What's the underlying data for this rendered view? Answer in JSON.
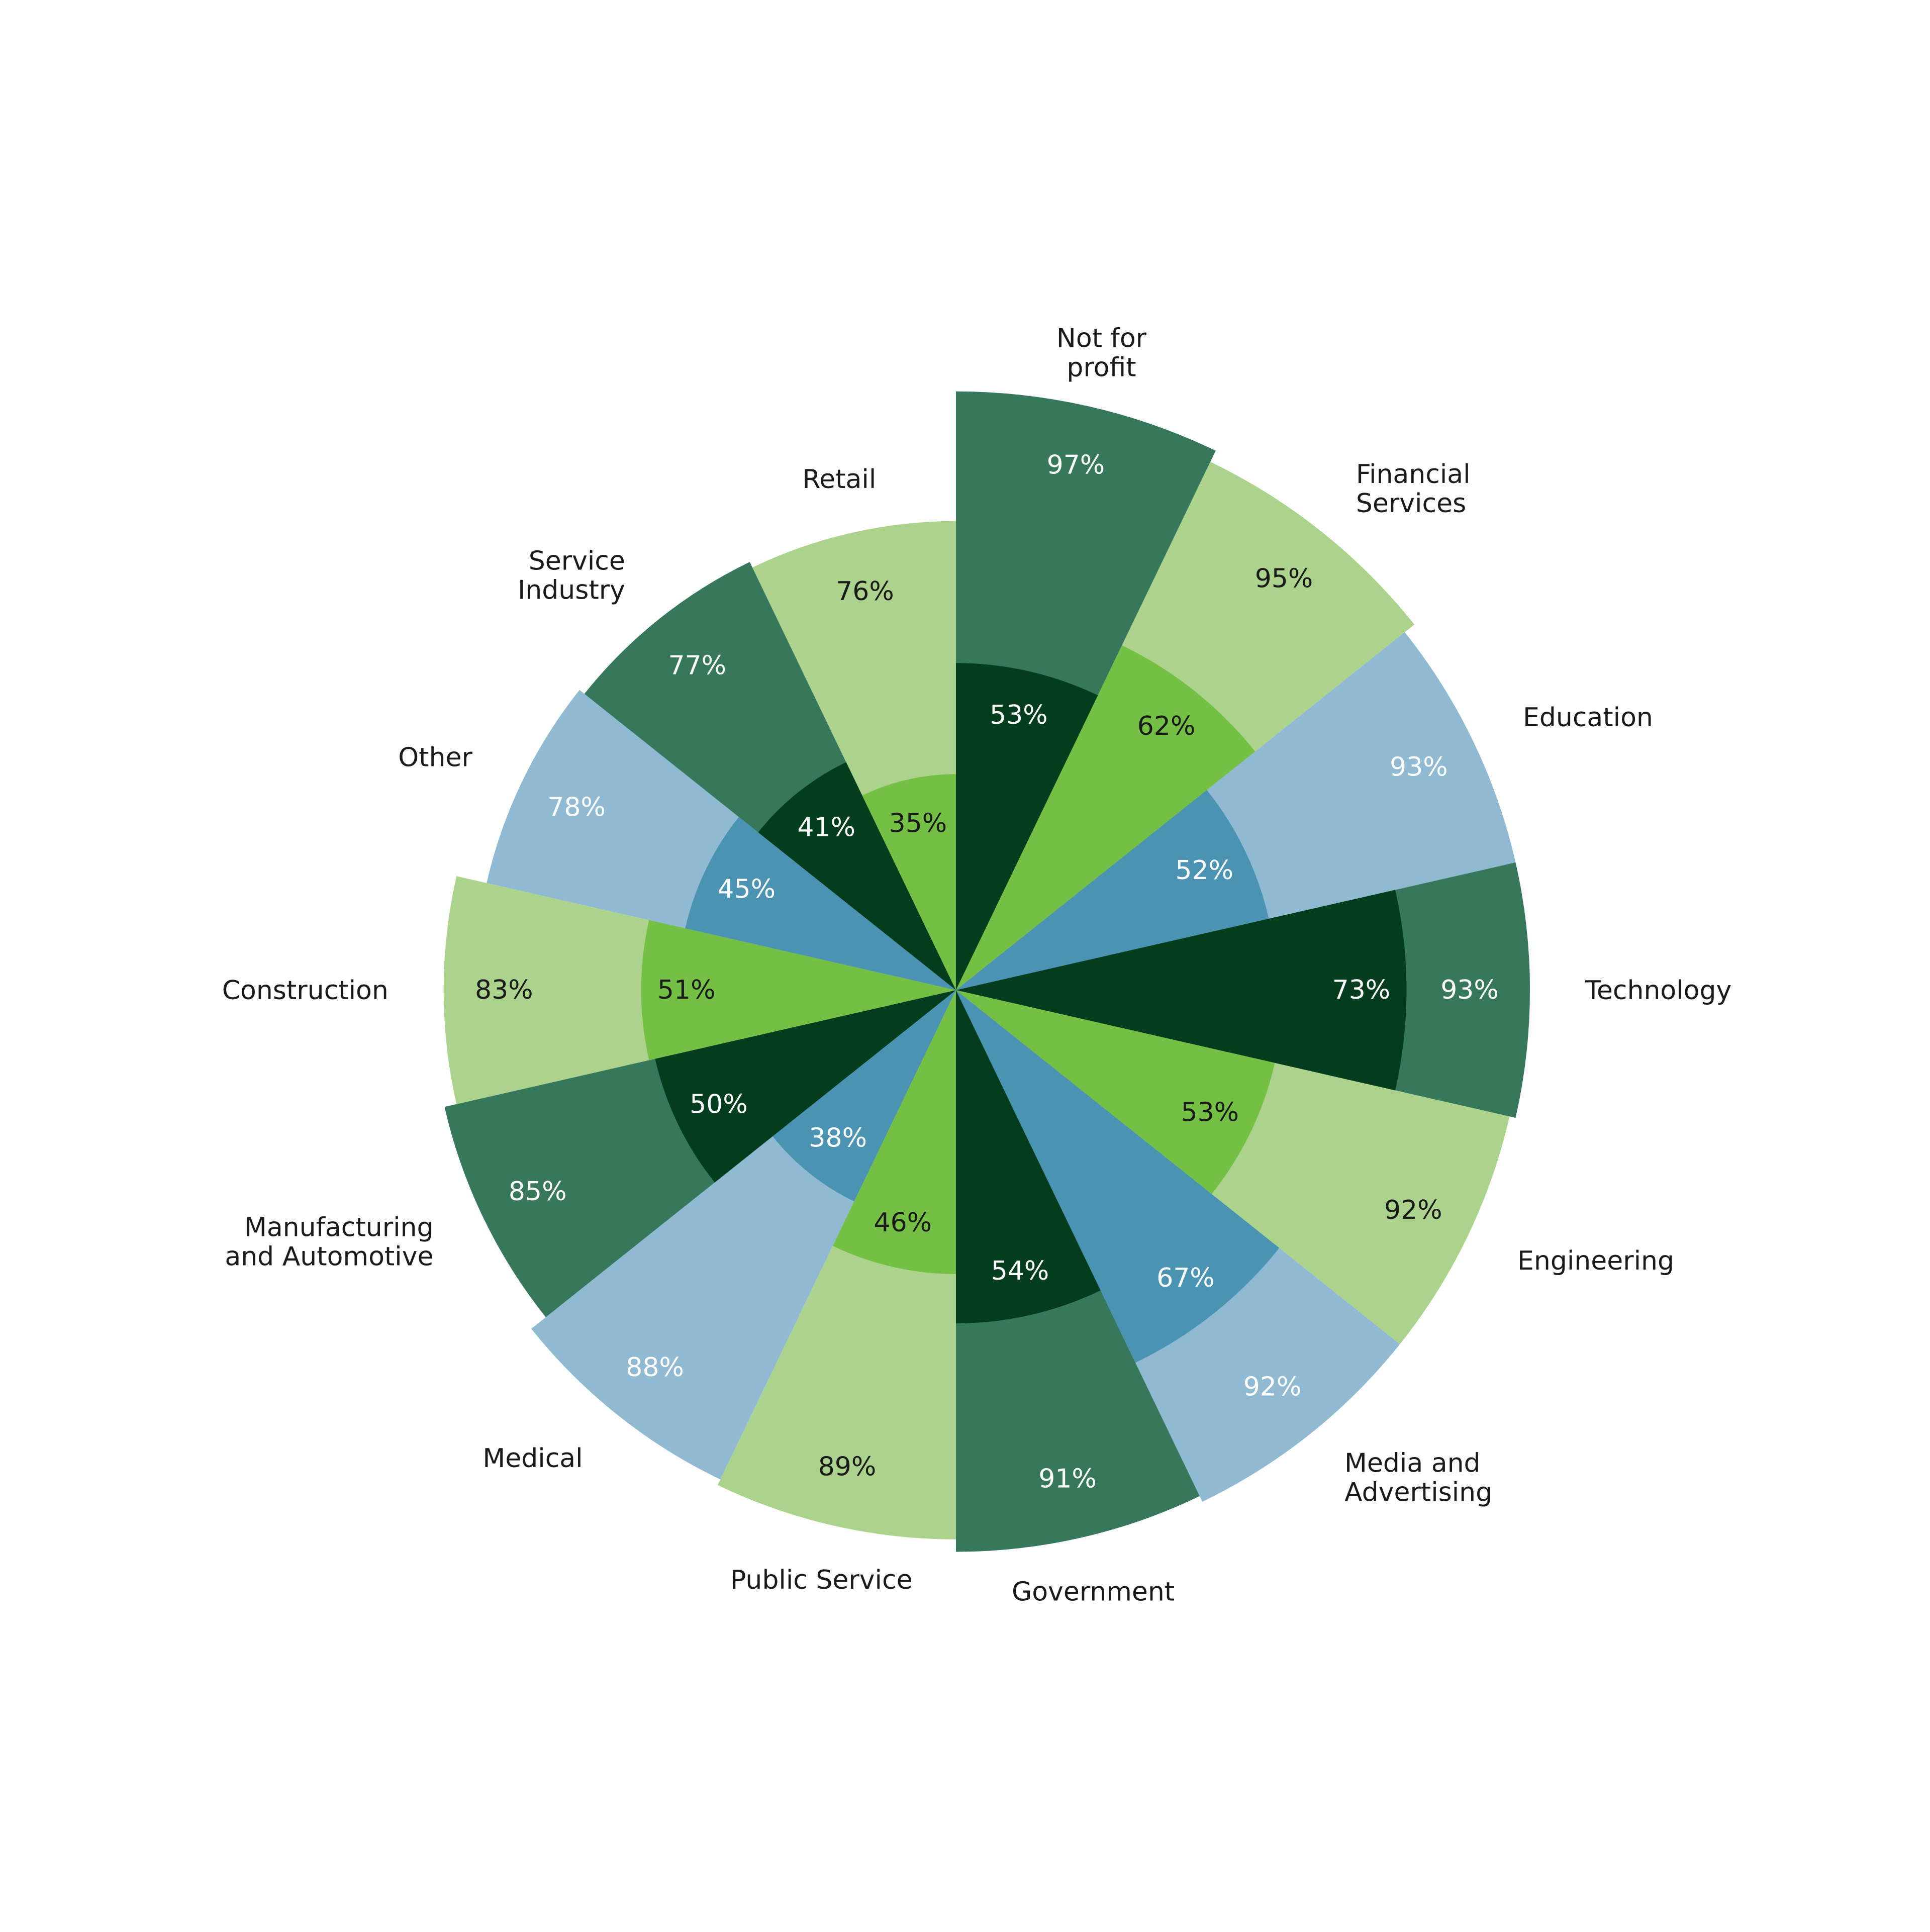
{
  "chart_data": {
    "type": "polar-bar",
    "value_unit": "%",
    "scale_max": 100,
    "palette": {
      "outer_dark": "#37785c",
      "inner_dark": "#023e1e",
      "outer_green": "#acd38b",
      "inner_green": "#74c045",
      "outer_blue": "#8fbad1",
      "inner_blue": "#4b93b2"
    },
    "categories": [
      {
        "label": [
          "Not for",
          "profit"
        ],
        "outer": 97,
        "outer_text": "97%",
        "inner": 53,
        "inner_text": "53%",
        "scheme": "dark"
      },
      {
        "label": [
          "Financial",
          "Services"
        ],
        "outer": 95,
        "outer_text": "95%",
        "inner": 62,
        "inner_text": "62%",
        "scheme": "green"
      },
      {
        "label": [
          "Education"
        ],
        "outer": 93,
        "outer_text": "93%",
        "inner": 52,
        "inner_text": "52%",
        "scheme": "blue"
      },
      {
        "label": [
          "Technology"
        ],
        "outer": 93,
        "outer_text": "93%",
        "inner": 73,
        "inner_text": "73%",
        "scheme": "dark"
      },
      {
        "label": [
          "Engineering"
        ],
        "outer": 92,
        "outer_text": "92%",
        "inner": 53,
        "inner_text": "53%",
        "scheme": "green"
      },
      {
        "label": [
          "Media and",
          "Advertising"
        ],
        "outer": 92,
        "outer_text": "92%",
        "inner": 67,
        "inner_text": "67%",
        "scheme": "blue"
      },
      {
        "label": [
          "Government"
        ],
        "outer": 91,
        "outer_text": "91%",
        "inner": 54,
        "inner_text": "54%",
        "scheme": "dark"
      },
      {
        "label": [
          "Public Service"
        ],
        "outer": 89,
        "outer_text": "89%",
        "inner": 46,
        "inner_text": "46%",
        "scheme": "green"
      },
      {
        "label": [
          "Medical"
        ],
        "outer": 88,
        "outer_text": "88%",
        "inner": 38,
        "inner_text": "38%",
        "scheme": "blue"
      },
      {
        "label": [
          "Manufacturing",
          "and Automotive"
        ],
        "outer": 85,
        "outer_text": "85%",
        "inner": 50,
        "inner_text": "50%",
        "scheme": "dark"
      },
      {
        "label": [
          "Construction"
        ],
        "outer": 83,
        "outer_text": "83%",
        "inner": 51,
        "inner_text": "51%",
        "scheme": "green"
      },
      {
        "label": [
          "Other"
        ],
        "outer": 78,
        "outer_text": "78%",
        "inner": 45,
        "inner_text": "45%",
        "scheme": "blue"
      },
      {
        "label": [
          "Service",
          "Industry"
        ],
        "outer": 77,
        "outer_text": "77%",
        "inner": 41,
        "inner_text": "41%",
        "scheme": "dark"
      },
      {
        "label": [
          "Retail"
        ],
        "outer": 76,
        "outer_text": "76%",
        "inner": 35,
        "inner_text": "35%",
        "scheme": "green"
      }
    ]
  }
}
